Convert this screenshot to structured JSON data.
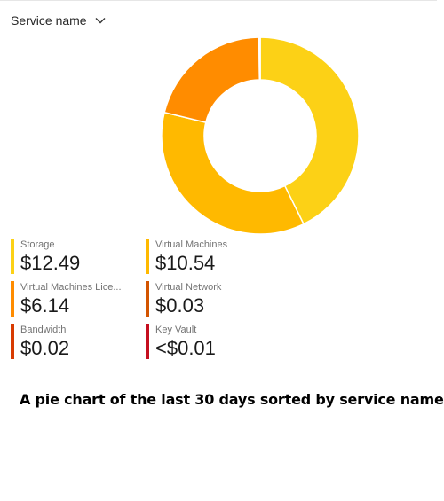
{
  "header": {
    "dropdown_label": "Service name",
    "dropdown_icon": "chevron-down-icon"
  },
  "chart_data": {
    "type": "pie",
    "variant": "donut",
    "categories": [
      "Storage",
      "Virtual Machines",
      "Virtual Machines Lice...",
      "Virtual Network",
      "Bandwidth",
      "Key Vault"
    ],
    "values": [
      12.49,
      10.54,
      6.14,
      0.03,
      0.02,
      0.005
    ],
    "labels": [
      "$12.49",
      "$10.54",
      "$6.14",
      "$0.03",
      "$0.02",
      "<$0.01"
    ],
    "colors": [
      "#fcd116",
      "#ffb900",
      "#ff8c00",
      "#d35400",
      "#d83b01",
      "#c50f1f"
    ],
    "legend_position": "bottom"
  },
  "caption": "A pie chart of the last 30 days sorted by service name"
}
